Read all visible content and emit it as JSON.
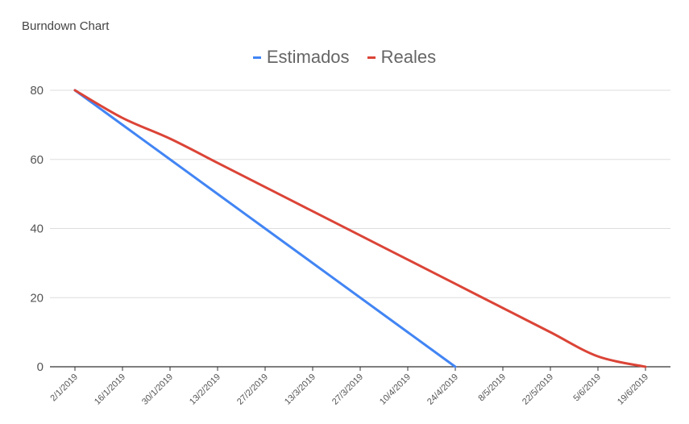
{
  "chart_data": {
    "type": "line",
    "title": "Burndown Chart",
    "xlabel": "",
    "ylabel": "",
    "categories": [
      "2/1/2019",
      "16/1/2019",
      "30/1/2019",
      "13/2/2019",
      "27/2/2019",
      "13/3/2019",
      "27/3/2019",
      "10/4/2019",
      "24/4/2019",
      "8/5/2019",
      "22/5/2019",
      "5/6/2019",
      "19/6/2019"
    ],
    "yticks": [
      0,
      20,
      40,
      60,
      80
    ],
    "ylim": [
      0,
      80
    ],
    "grid": true,
    "legend_position": "top",
    "series": [
      {
        "name": "Estimados",
        "color": "#4285f4",
        "values": [
          80,
          70,
          60,
          50,
          40,
          30,
          20,
          10,
          0,
          null,
          null,
          null,
          null
        ]
      },
      {
        "name": "Reales",
        "color": "#db4437",
        "values": [
          80,
          72,
          66,
          59,
          52,
          45,
          38,
          31,
          24,
          17,
          10,
          3,
          0
        ]
      }
    ]
  }
}
